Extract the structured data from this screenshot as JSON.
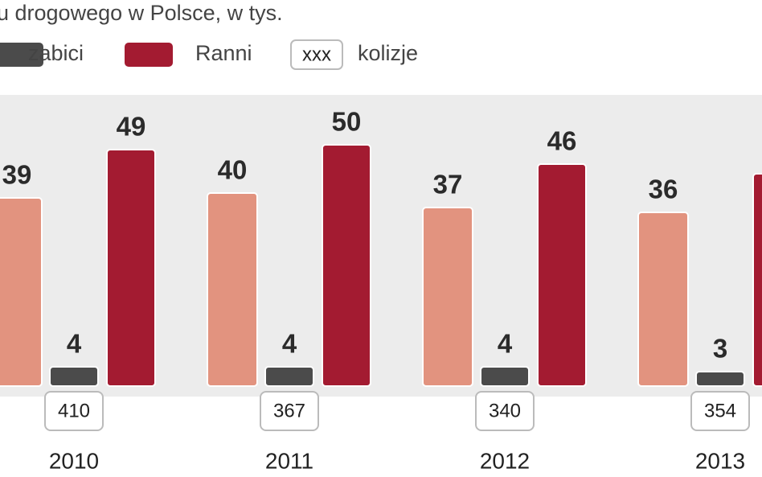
{
  "chart_data": {
    "type": "bar",
    "title": "u drogowego w Polsce, w tys.",
    "categories": [
      "2010",
      "2011",
      "2012",
      "2013"
    ],
    "series": [
      {
        "color": "#e2937f",
        "values": [
          39,
          40,
          37,
          36
        ]
      },
      {
        "name": "zabici",
        "color": "#4b4b4b",
        "values": [
          4,
          4,
          4,
          3
        ]
      },
      {
        "name": "Ranni",
        "color": "#a31b31",
        "values": [
          49,
          50,
          46,
          44
        ]
      }
    ],
    "collisions": {
      "name": "kolizje",
      "legend_sample": "xxx",
      "values": [
        410,
        367,
        340,
        354
      ]
    },
    "ylim": [
      0,
      60
    ]
  }
}
